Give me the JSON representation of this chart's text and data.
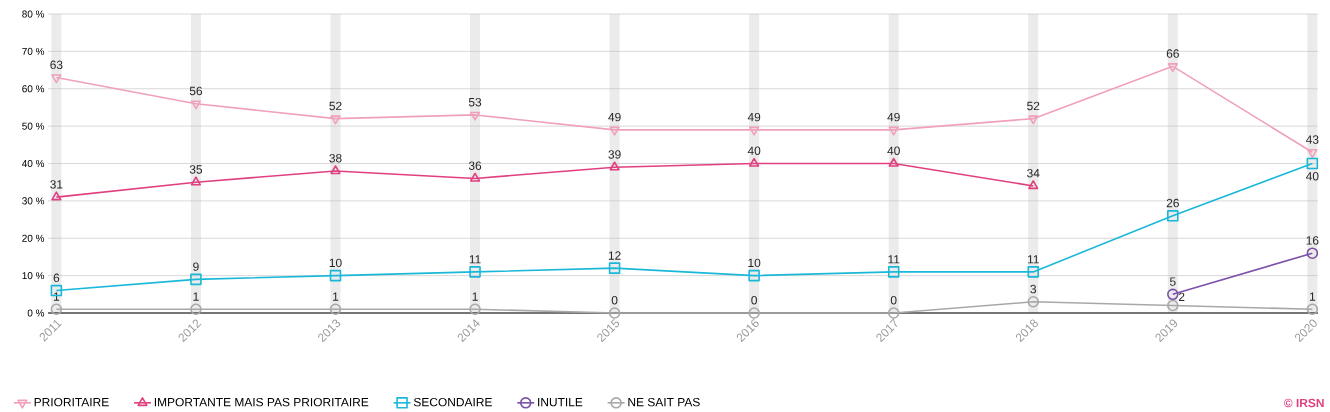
{
  "chart_data": {
    "type": "line",
    "categories": [
      "2011",
      "2012",
      "2013",
      "2014",
      "2015",
      "2016",
      "2017",
      "2018",
      "2019",
      "2020"
    ],
    "series": [
      {
        "name": "PRIORITAIRE",
        "color": "#f0a0bc",
        "marker": "triangle down",
        "values": [
          63,
          56,
          52,
          53,
          49,
          49,
          49,
          52,
          66,
          43
        ]
      },
      {
        "name": "IMPORTANTE MAIS PAS PRIORITAIRE",
        "color": "#e0407f",
        "marker": "triangle",
        "values": [
          31,
          35,
          38,
          36,
          39,
          40,
          40,
          34,
          null,
          null
        ]
      },
      {
        "name": "SECONDAIRE",
        "color": "#1ab8d8",
        "marker": "square",
        "values": [
          6,
          9,
          10,
          11,
          12,
          10,
          11,
          11,
          26,
          40
        ]
      },
      {
        "name": "INUTILE",
        "color": "#7b52a8",
        "marker": "circle",
        "values": [
          null,
          null,
          null,
          null,
          null,
          null,
          null,
          null,
          5,
          16
        ]
      },
      {
        "name": "NE SAIT PAS",
        "color": "#a8a8a8",
        "marker": "circle",
        "values": [
          1,
          1,
          1,
          1,
          0,
          0,
          0,
          3,
          2,
          1
        ]
      }
    ],
    "ylim": [
      0,
      80
    ],
    "yticks": [
      {
        "value": 0,
        "label": "0 %"
      },
      {
        "value": 10,
        "label": "10 %"
      },
      {
        "value": 20,
        "label": "20 %"
      },
      {
        "value": 30,
        "label": "30 %"
      },
      {
        "value": 40,
        "label": "40 %"
      },
      {
        "value": 50,
        "label": "50 %"
      },
      {
        "value": 60,
        "label": "60 %"
      },
      {
        "value": 70,
        "label": "70 %"
      },
      {
        "value": 80,
        "label": "80 %"
      }
    ],
    "grid": true,
    "legend": "bottom",
    "data_labels": true,
    "line_style": "solid",
    "annotations": [
      "© IRSN"
    ]
  }
}
